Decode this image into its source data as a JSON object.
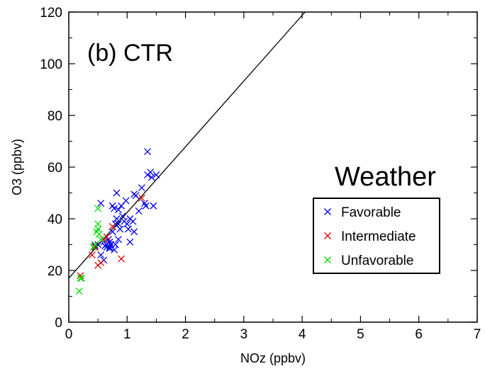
{
  "chart_data": {
    "type": "scatter",
    "title": "",
    "panel_label": "(b) CTR",
    "xlabel": "NOz (ppbv)",
    "ylabel": "O3 (ppbv)",
    "xlim": [
      0,
      7
    ],
    "ylim": [
      0,
      120
    ],
    "xticks": [
      0,
      1,
      2,
      3,
      4,
      5,
      6,
      7
    ],
    "yticks": [
      0,
      20,
      40,
      60,
      80,
      100,
      120
    ],
    "grid": false,
    "legend": {
      "title": "Weather",
      "position": "right"
    },
    "fit_line": {
      "x": [
        0,
        4.05
      ],
      "y": [
        17,
        120
      ],
      "color": "#000000"
    },
    "series": [
      {
        "name": "Favorable",
        "color": "#0000ee",
        "marker": "x",
        "points": [
          [
            0.45,
            29.5
          ],
          [
            0.5,
            30
          ],
          [
            0.55,
            46
          ],
          [
            0.6,
            31
          ],
          [
            0.62,
            29.5
          ],
          [
            0.65,
            30
          ],
          [
            0.68,
            32
          ],
          [
            0.7,
            28.5
          ],
          [
            0.72,
            30
          ],
          [
            0.75,
            45
          ],
          [
            0.75,
            35
          ],
          [
            0.78,
            44
          ],
          [
            0.8,
            38
          ],
          [
            0.82,
            50
          ],
          [
            0.82,
            40
          ],
          [
            0.85,
            43.5
          ],
          [
            0.85,
            38
          ],
          [
            0.88,
            36
          ],
          [
            0.9,
            45
          ],
          [
            0.92,
            41
          ],
          [
            0.95,
            39
          ],
          [
            0.98,
            47
          ],
          [
            1.0,
            38
          ],
          [
            1.02,
            36
          ],
          [
            1.05,
            40
          ],
          [
            1.05,
            31
          ],
          [
            1.1,
            39
          ],
          [
            1.12,
            49.5
          ],
          [
            1.12,
            35
          ],
          [
            1.15,
            49
          ],
          [
            1.2,
            43
          ],
          [
            1.25,
            52
          ],
          [
            1.3,
            46
          ],
          [
            1.32,
            45
          ],
          [
            1.35,
            57
          ],
          [
            1.35,
            66
          ],
          [
            1.4,
            58
          ],
          [
            1.42,
            56
          ],
          [
            1.45,
            45
          ],
          [
            1.5,
            57
          ],
          [
            0.55,
            26
          ],
          [
            0.65,
            29
          ],
          [
            0.7,
            31
          ],
          [
            0.78,
            28
          ],
          [
            0.85,
            32
          ],
          [
            0.6,
            24
          ],
          [
            0.7,
            29
          ],
          [
            0.8,
            30
          ]
        ]
      },
      {
        "name": "Intermediate",
        "color": "#dd0000",
        "marker": "x",
        "points": [
          [
            0.2,
            18
          ],
          [
            0.4,
            26
          ],
          [
            0.45,
            29
          ],
          [
            0.5,
            22
          ],
          [
            0.55,
            23
          ],
          [
            0.6,
            32
          ],
          [
            0.65,
            33
          ],
          [
            0.75,
            37
          ],
          [
            0.9,
            24.5
          ],
          [
            1.25,
            48
          ]
        ]
      },
      {
        "name": "Unfavorable",
        "color": "#00dd00",
        "marker": "x",
        "points": [
          [
            0.18,
            12
          ],
          [
            0.2,
            17
          ],
          [
            0.22,
            17
          ],
          [
            0.42,
            29
          ],
          [
            0.48,
            35
          ],
          [
            0.5,
            38
          ],
          [
            0.5,
            36
          ],
          [
            0.52,
            34
          ],
          [
            0.5,
            44
          ],
          [
            0.55,
            32
          ],
          [
            0.45,
            30
          ]
        ]
      }
    ]
  }
}
